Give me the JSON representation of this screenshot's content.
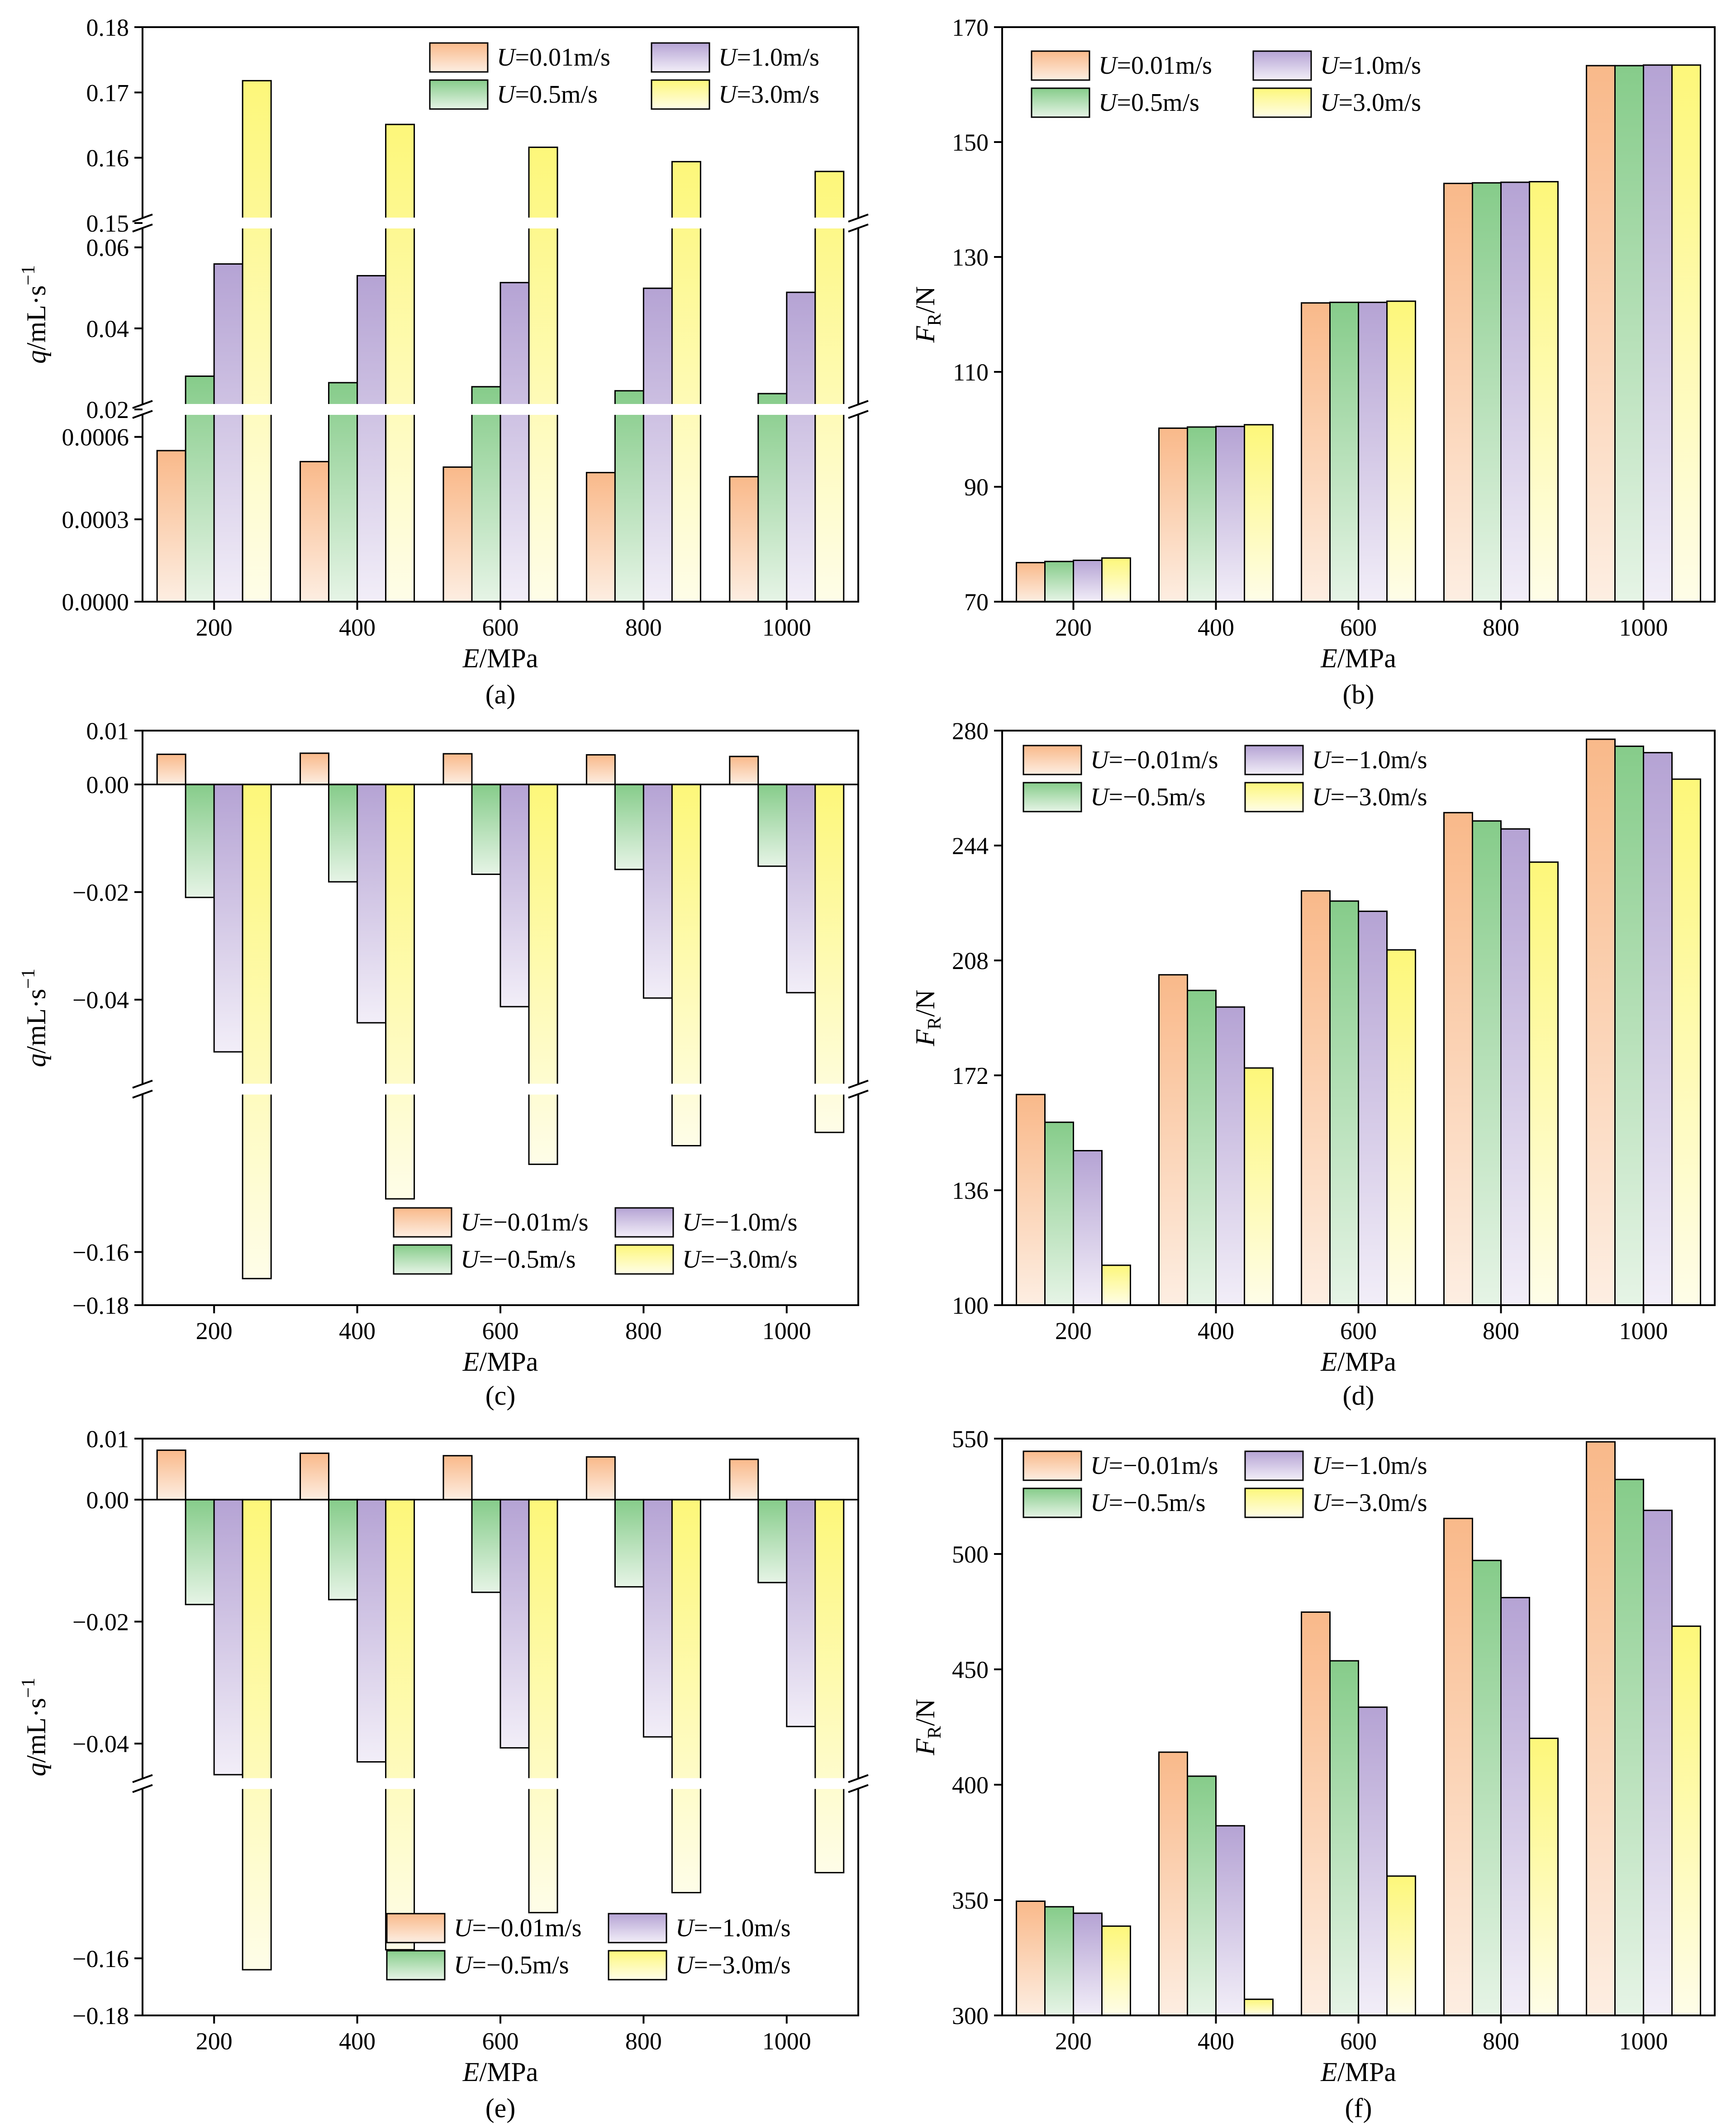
{
  "colors": {
    "s1_top": "#f9b98a",
    "s1_bottom": "#fdeee2",
    "s2_top": "#86cc8a",
    "s2_bottom": "#e6f4e6",
    "s3_top": "#b5a3d4",
    "s3_bottom": "#f2eef8",
    "s4_top": "#fdf77a",
    "s4_bottom": "#fefde8"
  },
  "chart_data": [
    {
      "id": "a",
      "type": "bar",
      "panel_label": "(a)",
      "xlabel_italic": "E",
      "xlabel_rest": "/MPa",
      "ylabel_italic": "q",
      "ylabel_rest": "/mL·s",
      "ylabel_sup": "−1",
      "categories": [
        "200",
        "400",
        "600",
        "800",
        "1000"
      ],
      "broken_axis": true,
      "y_segments": [
        {
          "range": [
            0.0,
            0.0007
          ],
          "ticks": [
            "0.0000",
            "0.0003",
            "0.0006"
          ],
          "tick_values": [
            0,
            0.0003,
            0.0006
          ]
        },
        {
          "range": [
            0.02,
            0.066
          ],
          "ticks": [
            "0.02",
            "0.04",
            "0.06"
          ],
          "tick_values": [
            0.02,
            0.04,
            0.06
          ]
        },
        {
          "range": [
            0.15,
            0.18
          ],
          "ticks": [
            "0.15",
            "0.16",
            "0.17",
            "0.18"
          ],
          "tick_values": [
            0.15,
            0.16,
            0.17,
            0.18
          ]
        }
      ],
      "legend_position": "top-center",
      "series": [
        {
          "prefix": "U",
          "name": "=0.01m/s",
          "values": [
            0.00055,
            0.00051,
            0.00049,
            0.00047,
            0.000455
          ]
        },
        {
          "prefix": "U",
          "name": "=0.5m/s",
          "values": [
            0.0282,
            0.0266,
            0.0256,
            0.0246,
            0.0239
          ]
        },
        {
          "prefix": "U",
          "name": "=1.0m/s",
          "values": [
            0.0559,
            0.053,
            0.0513,
            0.0499,
            0.0489
          ]
        },
        {
          "prefix": "U",
          "name": "=3.0m/s",
          "values": [
            0.1718,
            0.1651,
            0.1616,
            0.1594,
            0.1579
          ]
        }
      ]
    },
    {
      "id": "b",
      "type": "bar",
      "panel_label": "(b)",
      "xlabel_italic": "E",
      "xlabel_rest": "/MPa",
      "ylabel_italic": "F",
      "ylabel_sub": "R",
      "ylabel_rest": "/N",
      "categories": [
        "200",
        "400",
        "600",
        "800",
        "1000"
      ],
      "ylim": [
        70,
        170
      ],
      "yticks": [
        "70",
        "90",
        "110",
        "130",
        "150",
        "170"
      ],
      "ytick_values": [
        70,
        90,
        110,
        130,
        150,
        170
      ],
      "legend_position": "top-left",
      "series": [
        {
          "prefix": "U",
          "name": "=0.01m/s",
          "values": [
            76.8,
            100.2,
            122.0,
            142.8,
            163.3
          ]
        },
        {
          "prefix": "U",
          "name": "=0.5m/s",
          "values": [
            77.0,
            100.4,
            122.1,
            142.9,
            163.3
          ]
        },
        {
          "prefix": "U",
          "name": "=1.0m/s",
          "values": [
            77.2,
            100.5,
            122.1,
            143.0,
            163.4
          ]
        },
        {
          "prefix": "U",
          "name": "=3.0m/s",
          "values": [
            77.6,
            100.8,
            122.3,
            143.1,
            163.4
          ]
        }
      ]
    },
    {
      "id": "c",
      "type": "bar",
      "panel_label": "(c)",
      "xlabel_italic": "E",
      "xlabel_rest": "/MPa",
      "ylabel_italic": "q",
      "ylabel_rest": "/mL·s",
      "ylabel_sup": "−1",
      "categories": [
        "200",
        "400",
        "600",
        "800",
        "1000"
      ],
      "broken_axis": true,
      "y_segments": [
        {
          "range": [
            -0.18,
            -0.1
          ],
          "ticks": [
            "−0.18",
            "−0.16"
          ],
          "tick_values": [
            -0.18,
            -0.16
          ]
        },
        {
          "range": [
            -0.056,
            0.01
          ],
          "ticks": [
            "−0.04",
            "−0.02",
            "0.00",
            "0.01"
          ],
          "tick_values": [
            -0.04,
            -0.02,
            0.0,
            0.01
          ]
        }
      ],
      "legend_position": "bottom-right",
      "series": [
        {
          "prefix": "U",
          "name": "=−0.01m/s",
          "values": [
            0.0056,
            0.0058,
            0.0057,
            0.0055,
            0.0052
          ]
        },
        {
          "prefix": "U",
          "name": "=−0.5m/s",
          "values": [
            -0.021,
            -0.0181,
            -0.0167,
            -0.0158,
            -0.0152
          ]
        },
        {
          "prefix": "U",
          "name": "=−1.0m/s",
          "values": [
            -0.0497,
            -0.0443,
            -0.0413,
            -0.0397,
            -0.0387
          ]
        },
        {
          "prefix": "U",
          "name": "=−3.0m/s",
          "values": [
            -0.17,
            -0.14,
            -0.127,
            -0.12,
            -0.115
          ]
        }
      ]
    },
    {
      "id": "d",
      "type": "bar",
      "panel_label": "(d)",
      "xlabel_italic": "E",
      "xlabel_rest": "/MPa",
      "ylabel_italic": "F",
      "ylabel_sub": "R",
      "ylabel_rest": "/N",
      "categories": [
        "200",
        "400",
        "600",
        "800",
        "1000"
      ],
      "ylim": [
        100,
        280
      ],
      "yticks": [
        "100",
        "136",
        "172",
        "208",
        "244",
        "280"
      ],
      "ytick_values": [
        100,
        136,
        172,
        208,
        244,
        280
      ],
      "legend_position": "top-left",
      "series": [
        {
          "prefix": "U",
          "name": "=−0.01m/s",
          "values": [
            166,
            203.5,
            229.8,
            254.3,
            277.3
          ]
        },
        {
          "prefix": "U",
          "name": "=−0.5m/s",
          "values": [
            157.3,
            198.6,
            226.6,
            251.7,
            275.1
          ]
        },
        {
          "prefix": "U",
          "name": "=−1.0m/s",
          "values": [
            148.4,
            193.4,
            223.4,
            249.2,
            273.1
          ]
        },
        {
          "prefix": "U",
          "name": "=−3.0m/s",
          "values": [
            112.5,
            174.3,
            211.3,
            238.8,
            264.8
          ]
        }
      ]
    },
    {
      "id": "e",
      "type": "bar",
      "panel_label": "(e)",
      "xlabel_italic": "E",
      "xlabel_rest": "/MPa",
      "ylabel_italic": "q",
      "ylabel_rest": "/mL·s",
      "ylabel_sup": "−1",
      "categories": [
        "200",
        "400",
        "600",
        "800",
        "1000"
      ],
      "broken_axis": true,
      "y_segments": [
        {
          "range": [
            -0.18,
            -0.1
          ],
          "ticks": [
            "−0.18",
            "−0.16"
          ],
          "tick_values": [
            -0.18,
            -0.16
          ]
        },
        {
          "range": [
            -0.046,
            0.01
          ],
          "ticks": [
            "−0.04",
            "−0.02",
            "0.00",
            "0.01"
          ],
          "tick_values": [
            -0.04,
            -0.02,
            0.0,
            0.01
          ]
        }
      ],
      "legend_position": "bottom-right",
      "series": [
        {
          "prefix": "U",
          "name": "=−0.01m/s",
          "values": [
            0.0081,
            0.0076,
            0.0072,
            0.007,
            0.0066
          ]
        },
        {
          "prefix": "U",
          "name": "=−0.5m/s",
          "values": [
            -0.0172,
            -0.0164,
            -0.0152,
            -0.0143,
            -0.0136
          ]
        },
        {
          "prefix": "U",
          "name": "=−1.0m/s",
          "values": [
            -0.0451,
            -0.043,
            -0.0407,
            -0.0389,
            -0.0372
          ]
        },
        {
          "prefix": "U",
          "name": "=−3.0m/s",
          "values": [
            -0.164,
            -0.157,
            -0.144,
            -0.137,
            -0.13
          ]
        }
      ]
    },
    {
      "id": "f",
      "type": "bar",
      "panel_label": "(f)",
      "xlabel_italic": "E",
      "xlabel_rest": "/MPa",
      "ylabel_italic": "F",
      "ylabel_sub": "R",
      "ylabel_rest": "/N",
      "categories": [
        "200",
        "400",
        "600",
        "800",
        "1000"
      ],
      "ylim": [
        300,
        550
      ],
      "yticks": [
        "300",
        "350",
        "400",
        "450",
        "500",
        "550"
      ],
      "ytick_values": [
        300,
        350,
        400,
        450,
        500,
        550
      ],
      "legend_position": "top-left",
      "series": [
        {
          "prefix": "U",
          "name": "=−0.01m/s",
          "values": [
            349.5,
            414.1,
            474.8,
            515.4,
            548.6
          ]
        },
        {
          "prefix": "U",
          "name": "=−0.5m/s",
          "values": [
            347.1,
            403.7,
            453.7,
            497.2,
            532.3
          ]
        },
        {
          "prefix": "U",
          "name": "=−1.0m/s",
          "values": [
            344.3,
            382.2,
            433.6,
            481.1,
            518.9
          ]
        },
        {
          "prefix": "U",
          "name": "=−3.0m/s",
          "values": [
            338.7,
            307.0,
            360.4,
            420.1,
            468.7
          ]
        }
      ]
    }
  ]
}
